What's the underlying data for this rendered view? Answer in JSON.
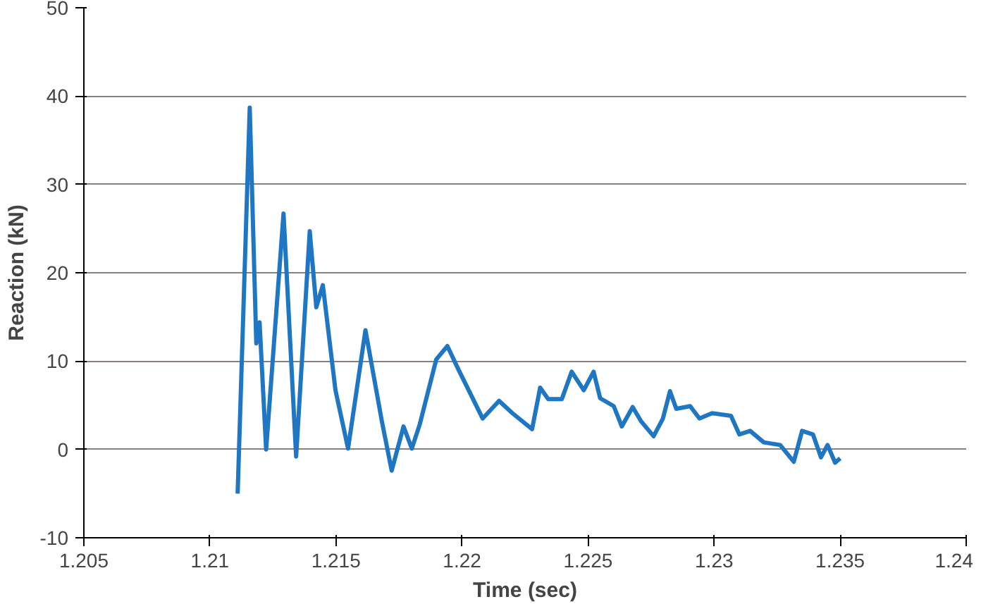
{
  "chart_data": {
    "type": "line",
    "xlabel": "Time (sec)",
    "ylabel": "Reaction (kN)",
    "xlim": [
      1.205,
      1.24
    ],
    "xticks": [
      1.205,
      1.21,
      1.215,
      1.22,
      1.225,
      1.23,
      1.235,
      1.24
    ],
    "ylim": [
      -10,
      50
    ],
    "yticks": [
      -10,
      0,
      10,
      20,
      30,
      40,
      50
    ],
    "grid": "y",
    "series": [
      {
        "color": "#1f77c4",
        "x": [
          1.2111,
          1.21158,
          1.21184,
          1.21197,
          1.21223,
          1.21292,
          1.21342,
          1.21396,
          1.21422,
          1.21448,
          1.21498,
          1.21548,
          1.21617,
          1.21682,
          1.21721,
          1.21768,
          1.21801,
          1.21833,
          1.21898,
          1.21942,
          1.21985,
          1.22082,
          1.22147,
          1.222,
          1.22278,
          1.2231,
          1.22342,
          1.22396,
          1.22435,
          1.22483,
          1.22522,
          1.22548,
          1.22602,
          1.22634,
          1.22677,
          1.2271,
          1.2276,
          1.22797,
          1.22825,
          1.2285,
          1.22905,
          1.22942,
          1.22992,
          1.23067,
          1.231,
          1.23143,
          1.23197,
          1.23262,
          1.23316,
          1.23349,
          1.23392,
          1.23424,
          1.2345,
          1.2348,
          1.235
        ],
        "values": [
          -5,
          38.7,
          12,
          14.4,
          0,
          26.7,
          -0.8,
          24.7,
          16.1,
          18.6,
          6.7,
          0.1,
          13.5,
          3.2,
          -2.4,
          2.6,
          0.1,
          2.9,
          10.2,
          11.7,
          9.1,
          3.5,
          5.5,
          4.1,
          2.3,
          7,
          5.7,
          5.7,
          8.8,
          6.7,
          8.8,
          5.8,
          4.9,
          2.6,
          4.8,
          3.2,
          1.5,
          3.5,
          6.6,
          4.6,
          4.9,
          3.5,
          4.1,
          3.8,
          1.7,
          2.1,
          0.8,
          0.5,
          -1.4,
          2.1,
          1.7,
          -0.9,
          0.5,
          -1.5,
          -1
        ]
      }
    ]
  }
}
